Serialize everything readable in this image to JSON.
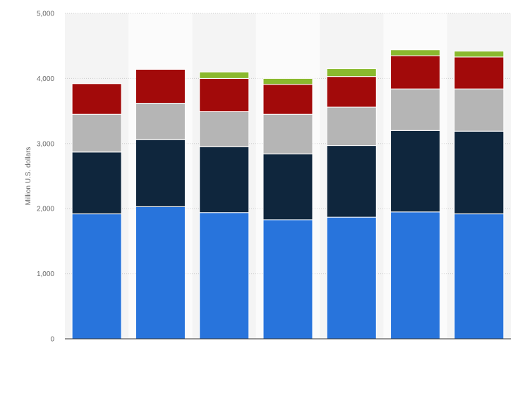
{
  "chart_data": {
    "type": "bar",
    "stacked": true,
    "categories": [
      "",
      "",
      "",
      "",
      "",
      "",
      ""
    ],
    "ylabel": "Million U.S. dollars",
    "ylim": [
      0,
      5000
    ],
    "yticks": [
      0,
      1000,
      2000,
      3000,
      4000,
      5000
    ],
    "ytick_labels": [
      "0",
      "1,000",
      "2,000",
      "3,000",
      "4,000",
      "5,000"
    ],
    "grid": true,
    "series": [
      {
        "color": "#2874dc",
        "values": [
          1920,
          2030,
          1940,
          1830,
          1870,
          1950,
          1920
        ]
      },
      {
        "color": "#0f263d",
        "values": [
          950,
          1030,
          1010,
          1010,
          1100,
          1250,
          1270
        ]
      },
      {
        "color": "#b5b5b5",
        "values": [
          580,
          560,
          540,
          610,
          590,
          640,
          650
        ]
      },
      {
        "color": "#a20a0a",
        "values": [
          470,
          520,
          510,
          460,
          470,
          510,
          490
        ]
      },
      {
        "color": "#8ab92e",
        "values": [
          0,
          0,
          100,
          90,
          120,
          90,
          90
        ]
      }
    ]
  }
}
